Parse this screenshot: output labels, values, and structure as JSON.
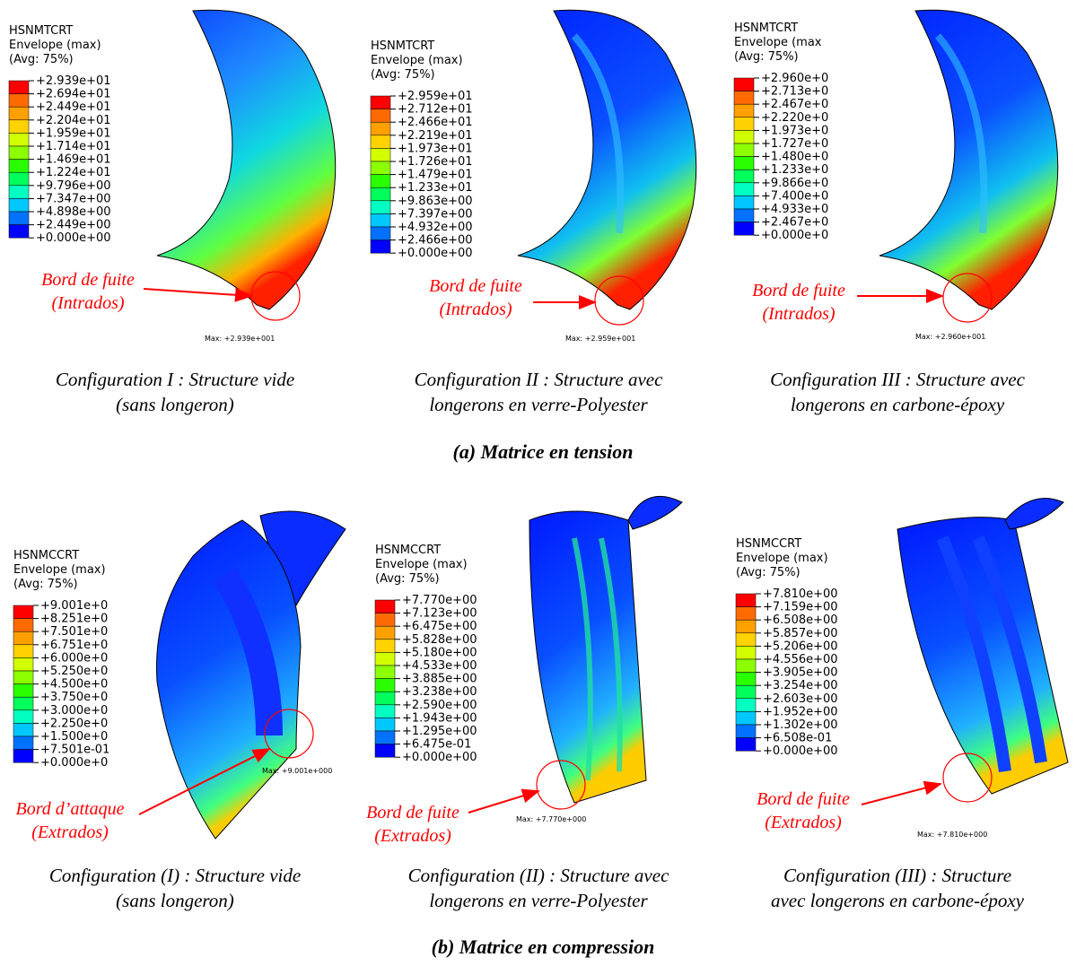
{
  "contour_colors": [
    "#ff0000",
    "#ff6a00",
    "#ffa000",
    "#ffd200",
    "#d2ff00",
    "#8cff00",
    "#2aff00",
    "#00ff5a",
    "#00ffc0",
    "#00c8ff",
    "#0072ff",
    "#0000ff"
  ],
  "sections": [
    {
      "caption": "(a) Matrice en tension",
      "panels": [
        {
          "legend": {
            "title": [
              "HSNMTCRT",
              "Envelope (max)",
              "(Avg: 75%)"
            ],
            "labels": [
              "+2.939e+01",
              "+2.694e+01",
              "+2.449e+01",
              "+2.204e+01",
              "+1.959e+01",
              "+1.714e+01",
              "+1.469e+01",
              "+1.224e+01",
              "+9.796e+00",
              "+7.347e+00",
              "+4.898e+00",
              "+2.449e+00",
              "+0.000e+00"
            ]
          },
          "annotation": [
            "Bord de fuite",
            "(Intrados)"
          ],
          "max_label": "Max: +2.939e+001",
          "caption": [
            "Configuration I : Structure vide",
            "(sans longeron)"
          ]
        },
        {
          "legend": {
            "title": [
              "HSNMTCRT",
              "Envelope (max)",
              "(Avg: 75%)"
            ],
            "labels": [
              "+2.959e+01",
              "+2.712e+01",
              "+2.466e+01",
              "+2.219e+01",
              "+1.973e+01",
              "+1.726e+01",
              "+1.479e+01",
              "+1.233e+01",
              "+9.863e+00",
              "+7.397e+00",
              "+4.932e+00",
              "+2.466e+00",
              "+0.000e+00"
            ]
          },
          "annotation": [
            "Bord de fuite",
            "(Intrados)"
          ],
          "max_label": "Max: +2.959e+001",
          "caption": [
            "Configuration II : Structure avec",
            "longerons en verre-Polyester"
          ]
        },
        {
          "legend": {
            "title": [
              "HSNMTCRT",
              "Envelope (max",
              "(Avg: 75%)"
            ],
            "labels": [
              "+2.960e+0",
              "+2.713e+0",
              "+2.467e+0",
              "+2.220e+0",
              "+1.973e+0",
              "+1.727e+0",
              "+1.480e+0",
              "+1.233e+0",
              "+9.866e+0",
              "+7.400e+0",
              "+4.933e+0",
              "+2.467e+0",
              "+0.000e+0"
            ]
          },
          "annotation": [
            "Bord de fuite",
            "(Intrados)"
          ],
          "max_label": "Max: +2.960e+001",
          "caption": [
            "Configuration III : Structure avec",
            "longerons en carbone-époxy"
          ]
        }
      ]
    },
    {
      "caption": "(b) Matrice en compression",
      "panels": [
        {
          "legend": {
            "title": [
              "HSNMCCRT",
              "Envelope (max)",
              "(Avg: 75%)"
            ],
            "labels": [
              "+9.001e+0",
              "+8.251e+0",
              "+7.501e+0",
              "+6.751e+0",
              "+6.000e+0",
              "+5.250e+0",
              "+4.500e+0",
              "+3.750e+0",
              "+3.000e+0",
              "+2.250e+0",
              "+1.500e+0",
              "+7.501e-01",
              "+0.000e+0"
            ]
          },
          "annotation": [
            "Bord d’attaque",
            "(Extrados)"
          ],
          "max_label": "Max: +9.001e+000",
          "caption": [
            "Configuration (I) : Structure vide",
            "(sans longeron)"
          ]
        },
        {
          "legend": {
            "title": [
              "HSNMCCRT",
              "Envelope (max)",
              "(Avg: 75%)"
            ],
            "labels": [
              "+7.770e+00",
              "+7.123e+00",
              "+6.475e+00",
              "+5.828e+00",
              "+5.180e+00",
              "+4.533e+00",
              "+3.885e+00",
              "+3.238e+00",
              "+2.590e+00",
              "+1.943e+00",
              "+1.295e+00",
              "+6.475e-01",
              "+0.000e+00"
            ]
          },
          "annotation": [
            "Bord de fuite",
            "(Extrados)"
          ],
          "max_label": "Max: +7.770e+000",
          "caption": [
            "Configuration (II) : Structure avec",
            "longerons en verre-Polyester"
          ]
        },
        {
          "legend": {
            "title": [
              "HSNMCCRT",
              "Envelope (max)",
              "(Avg: 75%)"
            ],
            "labels": [
              "+7.810e+00",
              "+7.159e+00",
              "+6.508e+00",
              "+5.857e+00",
              "+5.206e+00",
              "+4.556e+00",
              "+3.905e+00",
              "+3.254e+00",
              "+2.603e+00",
              "+1.952e+00",
              "+1.302e+00",
              "+6.508e-01",
              "+0.000e+00"
            ]
          },
          "annotation": [
            "Bord de fuite",
            "(Extrados)"
          ],
          "max_label": "Max: +7.810e+000",
          "caption": [
            "Configuration (III) : Structure",
            "avec longerons en carbone-époxy"
          ]
        }
      ]
    }
  ]
}
